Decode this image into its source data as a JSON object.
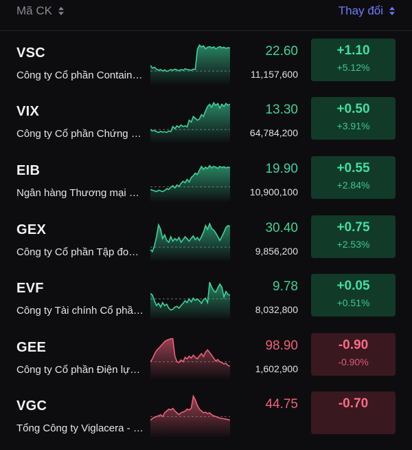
{
  "header": {
    "left_label": "Mã CK",
    "right_label": "Thay đổi"
  },
  "colors": {
    "up": "#3bd49c",
    "down": "#f0607a",
    "accent": "#6e7bff"
  },
  "rows": [
    {
      "symbol": "VSC",
      "name": "Công ty Cổ phần Container Việt Nam",
      "price": "22.60",
      "volume": "11,157,600",
      "change": "+1.10",
      "percent": "+5.12%",
      "trend": "up",
      "spark": [
        0.35,
        0.28,
        0.3,
        0.25,
        0.22,
        0.24,
        0.2,
        0.23,
        0.19,
        0.21,
        0.24,
        0.22,
        0.25,
        0.23,
        0.21,
        0.24,
        0.22,
        0.26,
        0.24,
        0.23,
        0.22,
        0.25,
        0.24,
        0.78,
        0.9,
        0.85,
        0.88,
        0.8,
        0.84,
        0.86,
        0.82,
        0.85,
        0.8,
        0.83,
        0.86,
        0.82,
        0.84,
        0.81,
        0.83,
        0.82
      ],
      "ref": 0.2
    },
    {
      "symbol": "VIX",
      "name": "Công ty Cổ phần Chứng khoán VIX",
      "price": "13.30",
      "volume": "64,784,200",
      "change": "+0.50",
      "percent": "+3.91%",
      "trend": "up",
      "spark": [
        0.2,
        0.16,
        0.18,
        0.14,
        0.12,
        0.15,
        0.13,
        0.14,
        0.12,
        0.16,
        0.14,
        0.28,
        0.22,
        0.3,
        0.26,
        0.32,
        0.28,
        0.3,
        0.27,
        0.45,
        0.4,
        0.55,
        0.5,
        0.45,
        0.48,
        0.6,
        0.55,
        0.7,
        0.82,
        0.88,
        0.8,
        0.92,
        0.85,
        0.9,
        0.78,
        0.88,
        0.82,
        0.9,
        0.86,
        0.88
      ],
      "ref": 0.2
    },
    {
      "symbol": "EIB",
      "name": "Ngân hàng Thương mại Cổ phần Xuất Nhập khẩu Việt Nam",
      "price": "19.90",
      "volume": "10,900,100",
      "change": "+0.55",
      "percent": "+2.84%",
      "trend": "up",
      "spark": [
        0.18,
        0.16,
        0.14,
        0.12,
        0.16,
        0.14,
        0.12,
        0.15,
        0.2,
        0.18,
        0.24,
        0.28,
        0.22,
        0.3,
        0.26,
        0.34,
        0.4,
        0.36,
        0.45,
        0.38,
        0.5,
        0.55,
        0.62,
        0.58,
        0.7,
        0.8,
        0.72,
        0.78,
        0.74,
        0.82,
        0.76,
        0.8,
        0.78,
        0.75,
        0.8,
        0.77,
        0.79,
        0.76,
        0.78,
        0.77
      ],
      "ref": 0.25
    },
    {
      "symbol": "GEX",
      "name": "Công ty Cổ phần Tập đoàn GELEX",
      "price": "30.40",
      "volume": "9,856,200",
      "change": "+0.75",
      "percent": "+2.53%",
      "trend": "up",
      "spark": [
        0.15,
        0.1,
        0.25,
        0.5,
        0.82,
        0.7,
        0.45,
        0.55,
        0.4,
        0.35,
        0.5,
        0.38,
        0.45,
        0.4,
        0.48,
        0.35,
        0.42,
        0.5,
        0.44,
        0.38,
        0.46,
        0.52,
        0.42,
        0.48,
        0.4,
        0.5,
        0.62,
        0.8,
        0.7,
        0.85,
        0.72,
        0.68,
        0.6,
        0.5,
        0.4,
        0.5,
        0.62,
        0.75,
        0.8,
        0.78
      ],
      "ref": 0.22
    },
    {
      "symbol": "EVF",
      "name": "Công ty Tài chính Cổ phần Điện lực",
      "price": "9.78",
      "volume": "8,032,800",
      "change": "+0.05",
      "percent": "+0.51%",
      "trend": "up",
      "spark": [
        0.55,
        0.5,
        0.35,
        0.22,
        0.28,
        0.18,
        0.3,
        0.22,
        0.26,
        0.15,
        0.1,
        0.12,
        0.18,
        0.2,
        0.15,
        0.22,
        0.28,
        0.35,
        0.3,
        0.4,
        0.32,
        0.42,
        0.36,
        0.4,
        0.35,
        0.28,
        0.38,
        0.42,
        0.3,
        0.85,
        0.72,
        0.62,
        0.58,
        0.7,
        0.8,
        0.72,
        0.45,
        0.6,
        0.52,
        0.5
      ],
      "ref": 0.4
    },
    {
      "symbol": "GEE",
      "name": "Công ty Cổ phần Điện lực Gelex",
      "price": "98.90",
      "volume": "1,602,900",
      "change": "-0.90",
      "percent": "-0.90%",
      "trend": "down",
      "spark": [
        0.3,
        0.38,
        0.5,
        0.6,
        0.66,
        0.72,
        0.78,
        0.84,
        0.88,
        0.9,
        0.92,
        0.92,
        0.45,
        0.3,
        0.28,
        0.35,
        0.3,
        0.42,
        0.38,
        0.45,
        0.4,
        0.48,
        0.42,
        0.38,
        0.46,
        0.52,
        0.44,
        0.56,
        0.62,
        0.55,
        0.48,
        0.4,
        0.32,
        0.36,
        0.3,
        0.28,
        0.24,
        0.26,
        0.2,
        0.18
      ],
      "ref": 0.3
    },
    {
      "symbol": "VGC",
      "name": "Tổng Công ty Viglacera - CTCP",
      "price": "44.75",
      "volume": "",
      "change": "-0.70",
      "percent": "",
      "trend": "down",
      "spark": [
        0.3,
        0.35,
        0.38,
        0.4,
        0.42,
        0.45,
        0.4,
        0.5,
        0.55,
        0.6,
        0.58,
        0.62,
        0.55,
        0.5,
        0.45,
        0.5,
        0.52,
        0.55,
        0.6,
        0.58,
        0.62,
        0.95,
        0.85,
        0.7,
        0.6,
        0.55,
        0.5,
        0.52,
        0.48,
        0.5,
        0.45,
        0.42,
        0.4,
        0.38,
        0.36,
        0.35,
        0.34,
        0.33,
        0.32,
        0.3
      ],
      "ref": 0.4
    }
  ]
}
